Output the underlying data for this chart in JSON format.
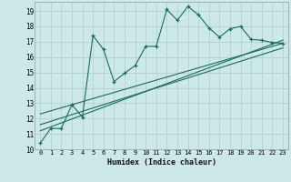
{
  "background_color": "#cde8e8",
  "grid_color": "#b0cccc",
  "line_color": "#1a6b5a",
  "xlabel": "Humidex (Indice chaleur)",
  "xlim": [
    -0.5,
    23.5
  ],
  "ylim": [
    10,
    19.6
  ],
  "yticks": [
    10,
    11,
    12,
    13,
    14,
    15,
    16,
    17,
    18,
    19
  ],
  "xticks": [
    0,
    1,
    2,
    3,
    4,
    5,
    6,
    7,
    8,
    9,
    10,
    11,
    12,
    13,
    14,
    15,
    16,
    17,
    18,
    19,
    20,
    21,
    22,
    23
  ],
  "series1_x": [
    0,
    1,
    2,
    3,
    4,
    5,
    6,
    7,
    8,
    9,
    10,
    11,
    12,
    13,
    14,
    15,
    16,
    17,
    18,
    19,
    20,
    21,
    22,
    23
  ],
  "series1_y": [
    10.4,
    11.35,
    11.35,
    12.9,
    12.1,
    17.4,
    16.5,
    14.4,
    14.95,
    15.45,
    16.7,
    16.7,
    19.1,
    18.4,
    19.3,
    18.75,
    17.9,
    17.3,
    17.85,
    18.0,
    17.15,
    17.1,
    16.95,
    16.9
  ],
  "series2_x": [
    0,
    23
  ],
  "series2_y": [
    11.2,
    17.1
  ],
  "series3_x": [
    0,
    23
  ],
  "series3_y": [
    11.6,
    16.6
  ],
  "series4_x": [
    0,
    23
  ],
  "series4_y": [
    12.3,
    16.9
  ]
}
